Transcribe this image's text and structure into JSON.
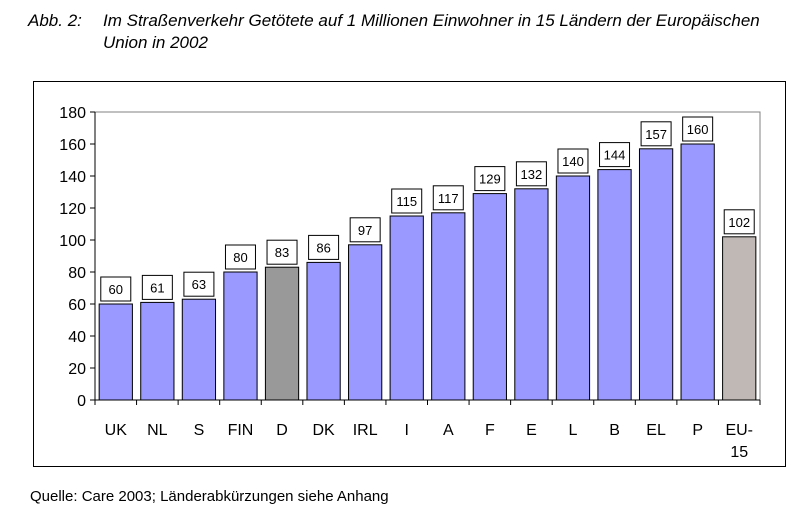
{
  "caption": {
    "label": "Abb. 2:",
    "text": "Im Straßenverkehr Getötete auf 1 Millionen Einwohner in 15 Ländern der Europäischen Union in 2002"
  },
  "chart_data": {
    "type": "bar",
    "title": "",
    "xlabel": "",
    "ylabel": "",
    "ylim": [
      0,
      180
    ],
    "yticks": [
      0,
      20,
      40,
      60,
      80,
      100,
      120,
      140,
      160,
      180
    ],
    "grid": false,
    "categories": [
      "UK",
      "NL",
      "S",
      "FIN",
      "D",
      "DK",
      "IRL",
      "I",
      "A",
      "F",
      "E",
      "L",
      "B",
      "EL",
      "P",
      "EU-15"
    ],
    "values": [
      60,
      61,
      63,
      80,
      83,
      86,
      97,
      115,
      117,
      129,
      132,
      140,
      144,
      157,
      160,
      102
    ],
    "colors": [
      "#9999ff",
      "#9999ff",
      "#9999ff",
      "#9999ff",
      "#999999",
      "#9999ff",
      "#9999ff",
      "#9999ff",
      "#9999ff",
      "#9999ff",
      "#9999ff",
      "#9999ff",
      "#9999ff",
      "#9999ff",
      "#9999ff",
      "#c0b8b4"
    ]
  },
  "source": "Quelle: Care 2003; Länderabkürzungen siehe Anhang"
}
